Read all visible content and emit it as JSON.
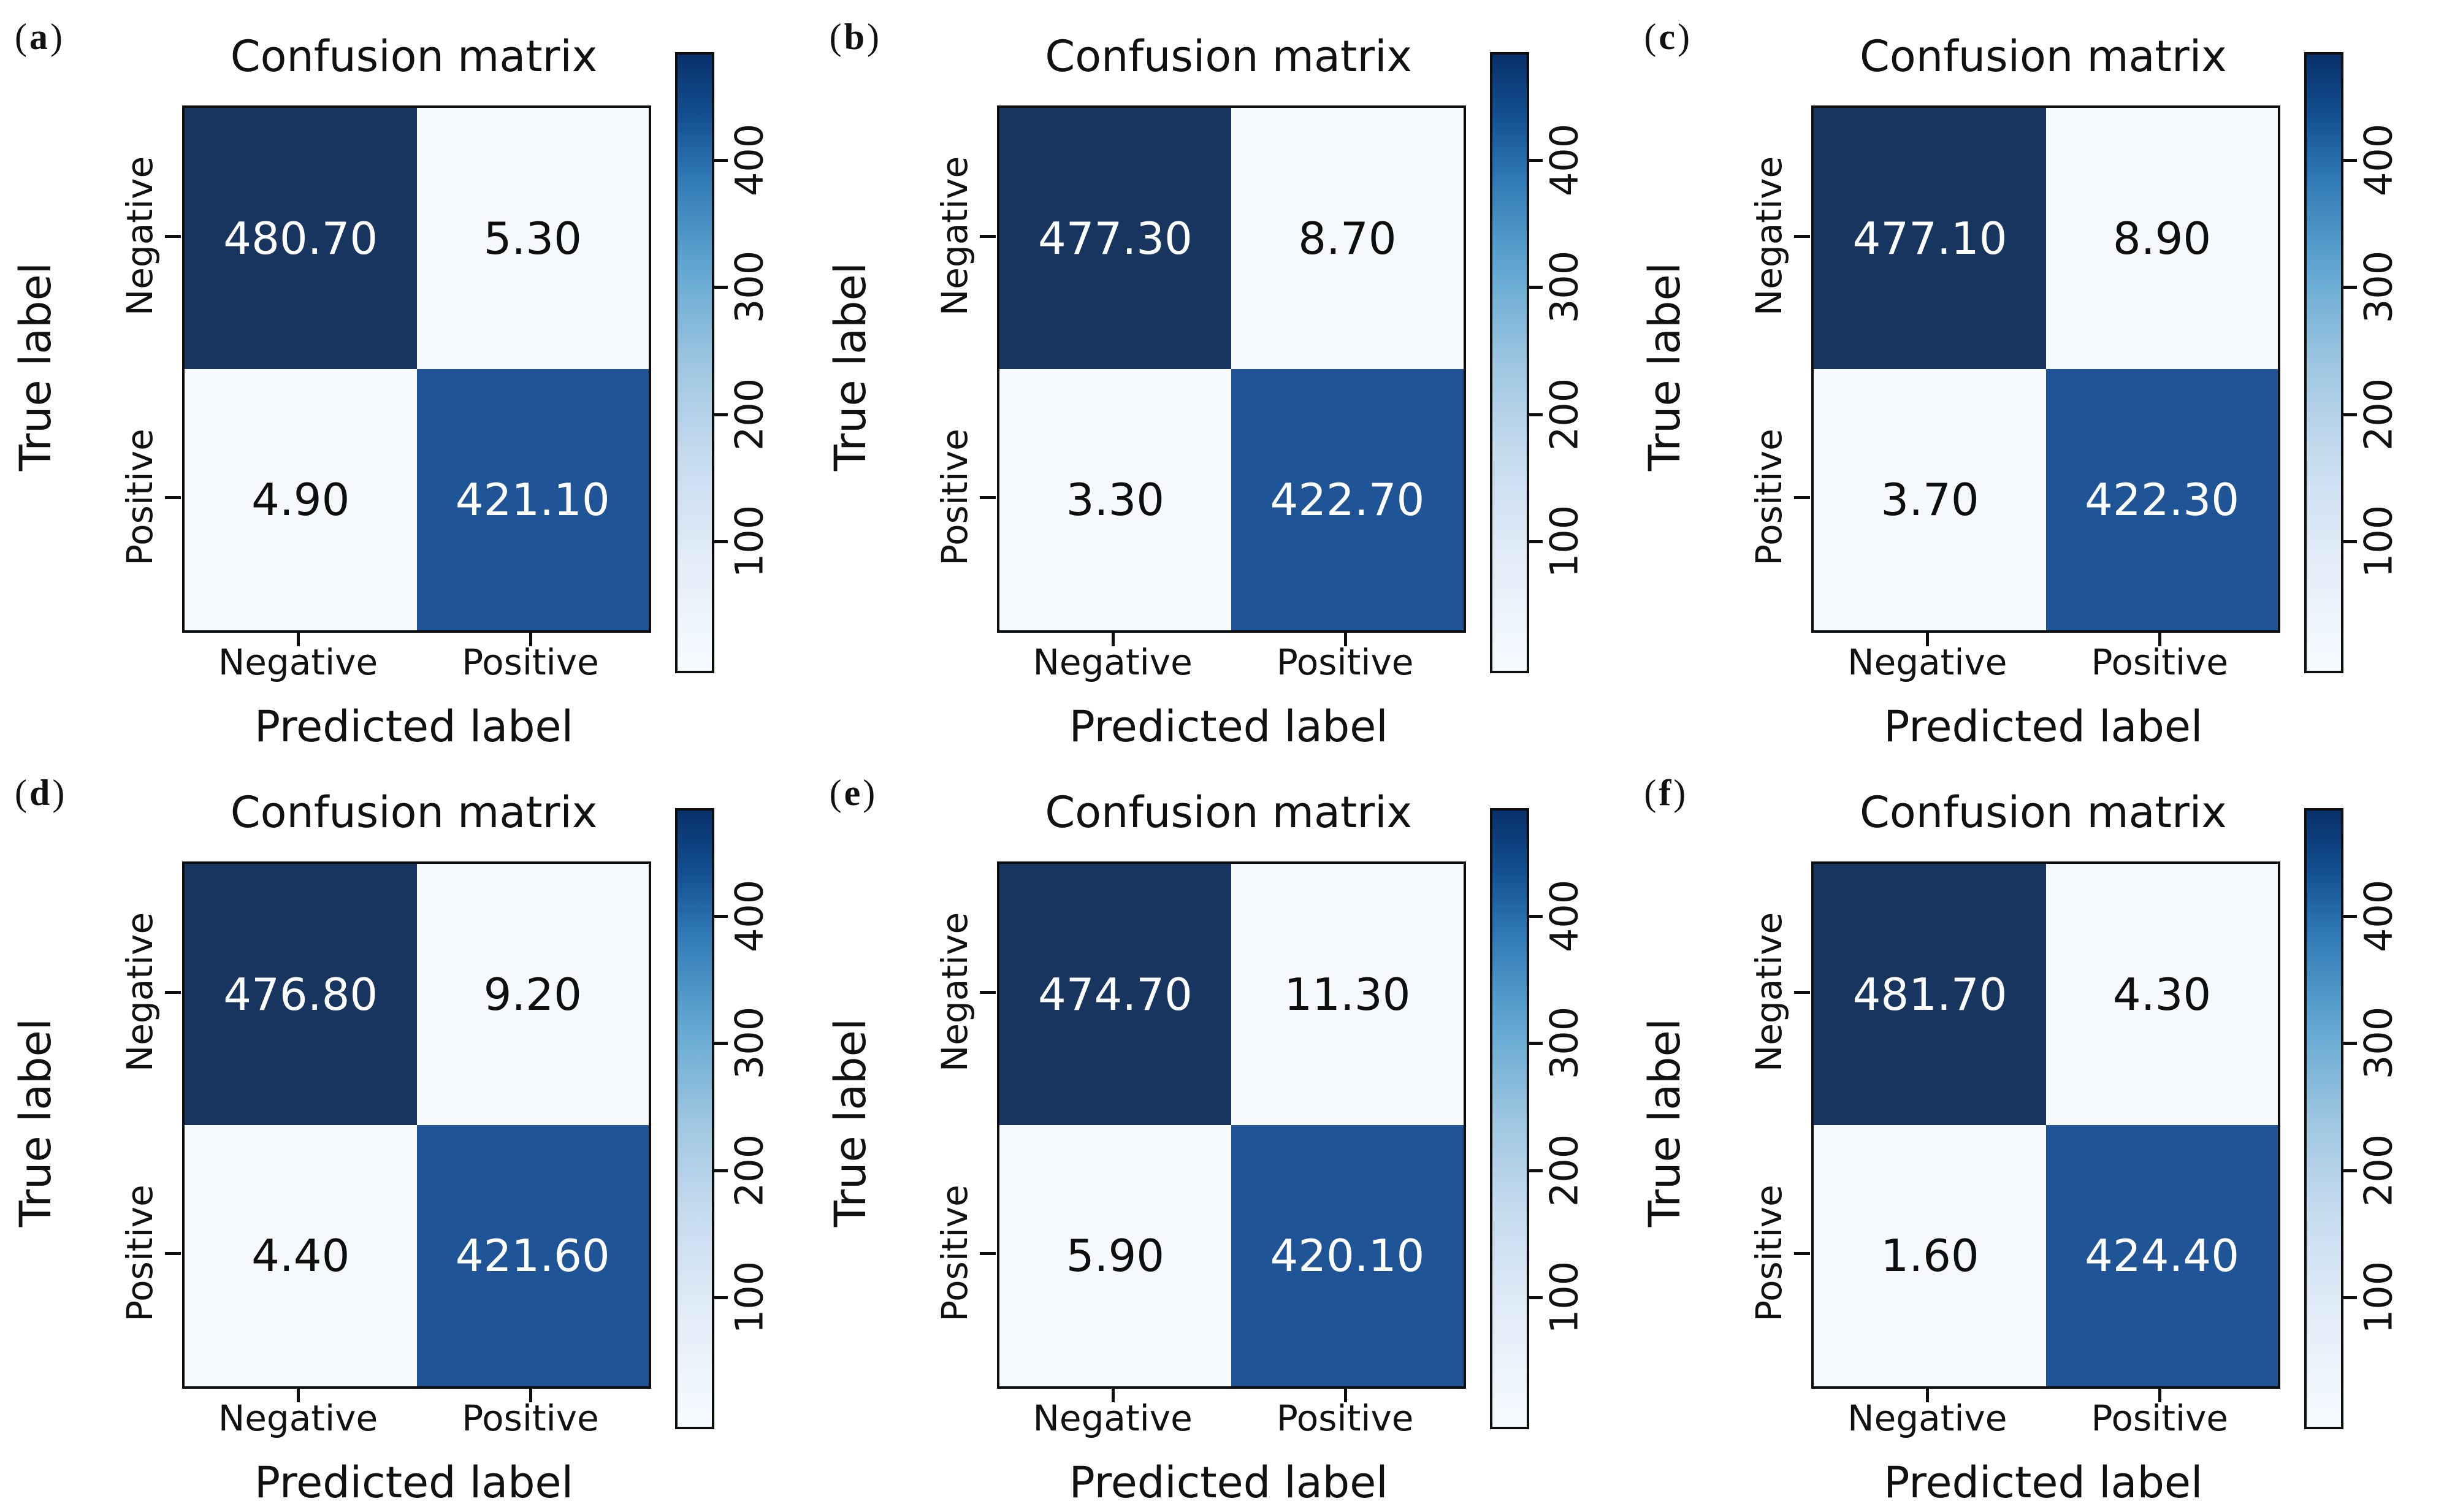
{
  "figure": {
    "paren_open": "(",
    "paren_close": ")",
    "title": "Confusion matrix",
    "xlabel": "Predicted label",
    "ylabel": "True label",
    "x_tick_labels": [
      "Negative",
      "Positive"
    ],
    "y_tick_labels": [
      "Negative",
      "Positive"
    ],
    "colorbar_tick_labels": [
      "100",
      "200",
      "300",
      "400"
    ],
    "colors": {
      "cell_dark": "#17355f",
      "cell_mid": "#1f5496",
      "cell_light": "#f5f9fc",
      "colormap_low": "#f7fbff",
      "colormap_high": "#08306b"
    }
  },
  "panels": [
    {
      "letter": "a",
      "cells": {
        "tn": "480.70",
        "fp": "5.30",
        "fn": "4.90",
        "tp": "421.10"
      }
    },
    {
      "letter": "b",
      "cells": {
        "tn": "477.30",
        "fp": "8.70",
        "fn": "3.30",
        "tp": "422.70"
      }
    },
    {
      "letter": "c",
      "cells": {
        "tn": "477.10",
        "fp": "8.90",
        "fn": "3.70",
        "tp": "422.30"
      }
    },
    {
      "letter": "d",
      "cells": {
        "tn": "476.80",
        "fp": "9.20",
        "fn": "4.40",
        "tp": "421.60"
      }
    },
    {
      "letter": "e",
      "cells": {
        "tn": "474.70",
        "fp": "11.30",
        "fn": "5.90",
        "tp": "420.10"
      }
    },
    {
      "letter": "f",
      "cells": {
        "tn": "481.70",
        "fp": "4.30",
        "fn": "1.60",
        "tp": "424.40"
      }
    }
  ],
  "chart_data": [
    {
      "type": "heatmap",
      "panel": "a",
      "title": "Confusion matrix",
      "xlabel": "Predicted label",
      "ylabel": "True label",
      "x_categories": [
        "Negative",
        "Positive"
      ],
      "y_categories": [
        "Negative",
        "Positive"
      ],
      "values": [
        [
          480.7,
          5.3
        ],
        [
          4.9,
          421.1
        ]
      ],
      "colorbar_ticks": [
        100,
        200,
        300,
        400
      ],
      "colormap": "Blues",
      "legend_position": "right"
    },
    {
      "type": "heatmap",
      "panel": "b",
      "title": "Confusion matrix",
      "xlabel": "Predicted label",
      "ylabel": "True label",
      "x_categories": [
        "Negative",
        "Positive"
      ],
      "y_categories": [
        "Negative",
        "Positive"
      ],
      "values": [
        [
          477.3,
          8.7
        ],
        [
          3.3,
          422.7
        ]
      ],
      "colorbar_ticks": [
        100,
        200,
        300,
        400
      ],
      "colormap": "Blues",
      "legend_position": "right"
    },
    {
      "type": "heatmap",
      "panel": "c",
      "title": "Confusion matrix",
      "xlabel": "Predicted label",
      "ylabel": "True label",
      "x_categories": [
        "Negative",
        "Positive"
      ],
      "y_categories": [
        "Negative",
        "Positive"
      ],
      "values": [
        [
          477.1,
          8.9
        ],
        [
          3.7,
          422.3
        ]
      ],
      "colorbar_ticks": [
        100,
        200,
        300,
        400
      ],
      "colormap": "Blues",
      "legend_position": "right"
    },
    {
      "type": "heatmap",
      "panel": "d",
      "title": "Confusion matrix",
      "xlabel": "Predicted label",
      "ylabel": "True label",
      "x_categories": [
        "Negative",
        "Positive"
      ],
      "y_categories": [
        "Negative",
        "Positive"
      ],
      "values": [
        [
          476.8,
          9.2
        ],
        [
          4.4,
          421.6
        ]
      ],
      "colorbar_ticks": [
        100,
        200,
        300,
        400
      ],
      "colormap": "Blues",
      "legend_position": "right"
    },
    {
      "type": "heatmap",
      "panel": "e",
      "title": "Confusion matrix",
      "xlabel": "Predicted label",
      "ylabel": "True label",
      "x_categories": [
        "Negative",
        "Positive"
      ],
      "y_categories": [
        "Negative",
        "Positive"
      ],
      "values": [
        [
          474.7,
          11.3
        ],
        [
          5.9,
          420.1
        ]
      ],
      "colorbar_ticks": [
        100,
        200,
        300,
        400
      ],
      "colormap": "Blues",
      "legend_position": "right"
    },
    {
      "type": "heatmap",
      "panel": "f",
      "title": "Confusion matrix",
      "xlabel": "Predicted label",
      "ylabel": "True label",
      "x_categories": [
        "Negative",
        "Positive"
      ],
      "y_categories": [
        "Negative",
        "Positive"
      ],
      "values": [
        [
          481.7,
          4.3
        ],
        [
          1.6,
          424.4
        ]
      ],
      "colorbar_ticks": [
        100,
        200,
        300,
        400
      ],
      "colormap": "Blues",
      "legend_position": "right"
    }
  ]
}
